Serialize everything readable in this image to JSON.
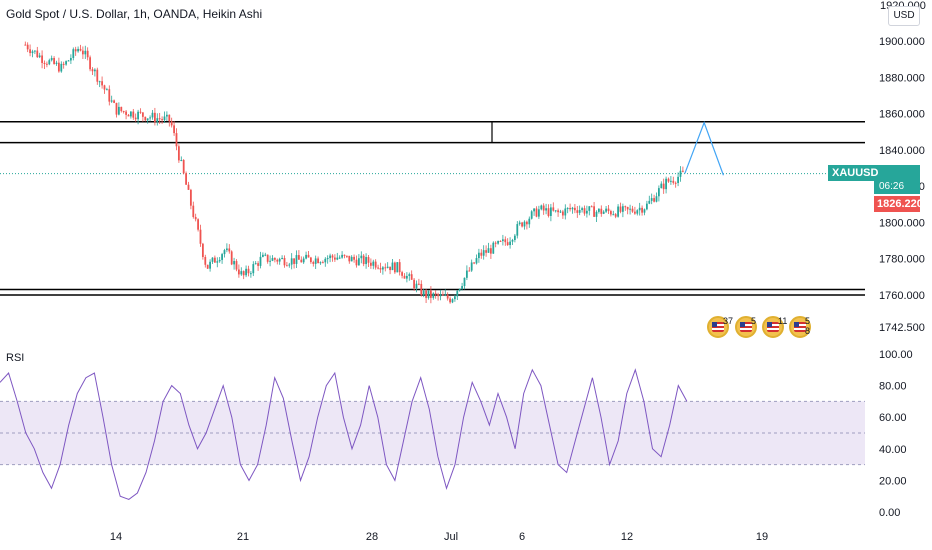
{
  "title": "Gold Spot / U.S. Dollar, 1h, OANDA, Heikin Ashi",
  "currency_button": "USD",
  "top_price_partial": "1920.000",
  "symbol_tag": {
    "symbol": "XAUUSD",
    "price": "1826.869",
    "timer": "06:26",
    "low_price": "1826.220"
  },
  "rsi_label": "RSI",
  "events": [
    {
      "icon": "us-flag-event-icon",
      "count": "37"
    },
    {
      "icon": "us-flag-event-icon",
      "count": "5"
    },
    {
      "icon": "us-flag-event-icon",
      "count": "11"
    },
    {
      "icon": "us-flag-event-icon",
      "count": "5 8"
    }
  ],
  "colors": {
    "up": "#26a69a",
    "down": "#ef5350",
    "rsi_line": "#7e57c2",
    "rsi_band": "#ede7f6",
    "projection": "#42a5f5"
  },
  "chart_data": [
    {
      "type": "candlestick",
      "title": "Gold Spot / U.S. Dollar, 1h, OANDA, Heikin Ashi",
      "x_ticks": [
        "14",
        "21",
        "28",
        "Jul",
        "6",
        "12",
        "19"
      ],
      "y_ticks": [
        "1742.500",
        "1760.000",
        "1780.000",
        "1800.000",
        "1820.000",
        "1840.000",
        "1860.000",
        "1880.000",
        "1900.000"
      ],
      "ylim": [
        1735,
        1922
      ],
      "price_path_anchors": [
        {
          "x": "Jun 9",
          "y": 1898
        },
        {
          "x": "Jun 10",
          "y": 1890
        },
        {
          "x": "Jun 11",
          "y": 1885
        },
        {
          "x": "Jun 12",
          "y": 1897
        },
        {
          "x": "Jun 13",
          "y": 1880
        },
        {
          "x": "Jun 14",
          "y": 1862
        },
        {
          "x": "Jun 15",
          "y": 1860
        },
        {
          "x": "Jun 16",
          "y": 1858
        },
        {
          "x": "Jun 17",
          "y": 1856
        },
        {
          "x": "Jun 18",
          "y": 1815
        },
        {
          "x": "Jun 19",
          "y": 1775
        },
        {
          "x": "Jun 20",
          "y": 1785
        },
        {
          "x": "Jun 21",
          "y": 1770
        },
        {
          "x": "Jun 22",
          "y": 1780
        },
        {
          "x": "Jun 24",
          "y": 1779
        },
        {
          "x": "Jun 26",
          "y": 1781
        },
        {
          "x": "Jun 28",
          "y": 1778
        },
        {
          "x": "Jun 29",
          "y": 1775
        },
        {
          "x": "Jun 30",
          "y": 1760
        },
        {
          "x": "Jul 1",
          "y": 1758
        },
        {
          "x": "Jul 2",
          "y": 1770
        },
        {
          "x": "Jul 3",
          "y": 1782
        },
        {
          "x": "Jul 5",
          "y": 1790
        },
        {
          "x": "Jul 6",
          "y": 1800
        },
        {
          "x": "Jul 7",
          "y": 1807
        },
        {
          "x": "Jul 8",
          "y": 1805
        },
        {
          "x": "Jul 9",
          "y": 1808
        },
        {
          "x": "Jul 10",
          "y": 1806
        },
        {
          "x": "Jul 12",
          "y": 1806
        },
        {
          "x": "Jul 13",
          "y": 1809
        },
        {
          "x": "Jul 14",
          "y": 1822
        },
        {
          "x": "Jul 15",
          "y": 1827
        }
      ],
      "horizontal_levels": [
        1855.5,
        1844,
        1763,
        1760
      ],
      "projection": [
        {
          "x": "Jul 15",
          "y": 1827
        },
        {
          "x": "Jul 16",
          "y": 1855
        },
        {
          "x": "Jul 17",
          "y": 1826
        }
      ],
      "last_price": 1826.869
    },
    {
      "type": "line",
      "title": "RSI",
      "y_ticks": [
        "0.00",
        "20.00",
        "40.00",
        "60.00",
        "80.00",
        "100.00"
      ],
      "ylim": [
        0,
        100
      ],
      "bands": [
        30,
        50,
        70
      ],
      "approx_series": [
        82,
        88,
        70,
        50,
        40,
        25,
        15,
        30,
        55,
        75,
        85,
        88,
        60,
        30,
        10,
        8,
        12,
        25,
        45,
        70,
        80,
        75,
        55,
        40,
        50,
        65,
        80,
        60,
        30,
        20,
        30,
        55,
        85,
        72,
        45,
        20,
        35,
        60,
        80,
        88,
        60,
        40,
        55,
        80,
        60,
        30,
        20,
        45,
        70,
        85,
        65,
        35,
        15,
        30,
        60,
        82,
        70,
        55,
        75,
        60,
        40,
        75,
        90,
        80,
        55,
        30,
        25,
        45,
        65,
        85,
        60,
        30,
        45,
        75,
        90,
        70,
        40,
        35,
        55,
        80,
        70
      ]
    }
  ]
}
